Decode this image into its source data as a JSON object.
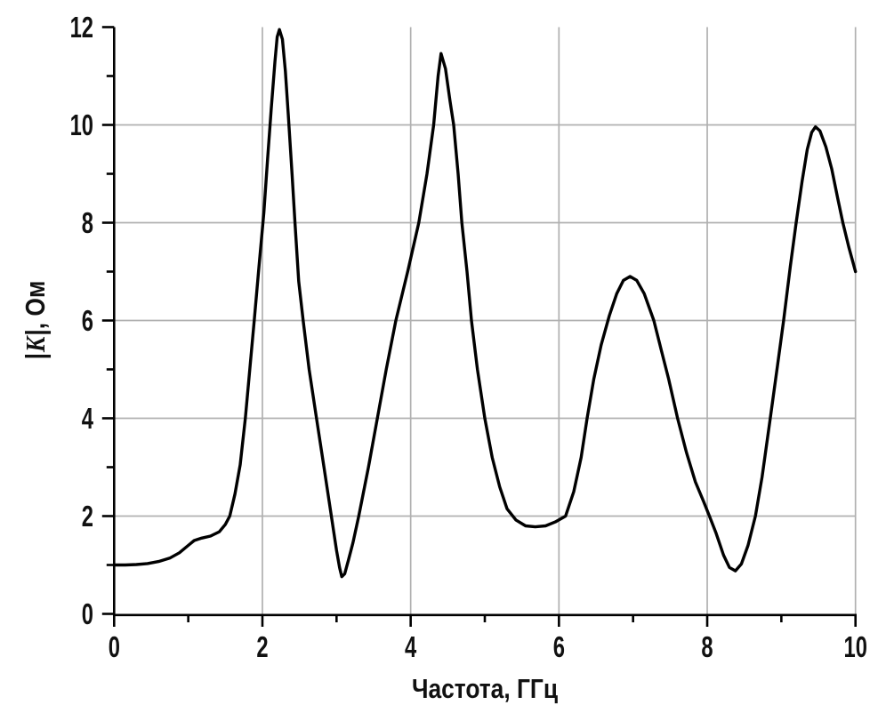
{
  "page": {
    "background": "#ffffff"
  },
  "labels": {
    "x_title": "Частота, ГГц",
    "y_pre": "|",
    "y_var": "K",
    "y_post": "|, Ом"
  },
  "chart_data": {
    "type": "line",
    "title": "",
    "xlabel": "Частота, ГГц",
    "ylabel": "|K|, Ом",
    "xlim": [
      0,
      10
    ],
    "ylim": [
      0,
      12
    ],
    "grid": {
      "vertical_at": [
        2,
        4,
        6,
        8,
        10
      ],
      "horizontal_at": [
        2,
        4,
        6,
        8,
        10
      ],
      "color": "#b0b0b0",
      "width": 1.7
    },
    "x_major_ticks": [
      0,
      2,
      4,
      6,
      8,
      10
    ],
    "x_minor_ticks": [
      1,
      3,
      5,
      7,
      9
    ],
    "y_major_ticks": [
      0,
      2,
      4,
      6,
      8,
      10,
      12
    ],
    "y_minor_ticks": [
      1,
      3,
      5,
      7,
      9,
      11
    ],
    "axis_color": "#000000",
    "series": [
      {
        "name": "|K|",
        "color": "#000000",
        "width": 3.4,
        "points": [
          [
            0.0,
            1.0
          ],
          [
            0.15,
            1.0
          ],
          [
            0.3,
            1.01
          ],
          [
            0.45,
            1.03
          ],
          [
            0.6,
            1.07
          ],
          [
            0.75,
            1.14
          ],
          [
            0.88,
            1.25
          ],
          [
            1.0,
            1.4
          ],
          [
            1.08,
            1.5
          ],
          [
            1.18,
            1.55
          ],
          [
            1.3,
            1.59
          ],
          [
            1.42,
            1.68
          ],
          [
            1.5,
            1.83
          ],
          [
            1.56,
            2.0
          ],
          [
            1.63,
            2.45
          ],
          [
            1.7,
            3.05
          ],
          [
            1.77,
            4.0
          ],
          [
            1.83,
            5.0
          ],
          [
            1.89,
            6.0
          ],
          [
            1.96,
            7.2
          ],
          [
            2.02,
            8.2
          ],
          [
            2.07,
            9.3
          ],
          [
            2.12,
            10.35
          ],
          [
            2.17,
            11.3
          ],
          [
            2.2,
            11.8
          ],
          [
            2.23,
            11.95
          ],
          [
            2.27,
            11.75
          ],
          [
            2.31,
            11.1
          ],
          [
            2.35,
            10.2
          ],
          [
            2.4,
            9.0
          ],
          [
            2.44,
            8.0
          ],
          [
            2.49,
            6.8
          ],
          [
            2.55,
            6.0
          ],
          [
            2.63,
            5.0
          ],
          [
            2.73,
            4.0
          ],
          [
            2.83,
            3.0
          ],
          [
            2.93,
            2.0
          ],
          [
            3.0,
            1.3
          ],
          [
            3.04,
            0.95
          ],
          [
            3.07,
            0.76
          ],
          [
            3.11,
            0.82
          ],
          [
            3.16,
            1.1
          ],
          [
            3.22,
            1.45
          ],
          [
            3.3,
            2.0
          ],
          [
            3.43,
            3.0
          ],
          [
            3.55,
            4.0
          ],
          [
            3.67,
            5.0
          ],
          [
            3.8,
            6.0
          ],
          [
            3.96,
            7.0
          ],
          [
            4.11,
            8.0
          ],
          [
            4.22,
            9.0
          ],
          [
            4.31,
            10.0
          ],
          [
            4.37,
            11.0
          ],
          [
            4.41,
            11.46
          ],
          [
            4.47,
            11.15
          ],
          [
            4.53,
            10.5
          ],
          [
            4.58,
            10.0
          ],
          [
            4.64,
            9.0
          ],
          [
            4.69,
            8.0
          ],
          [
            4.76,
            7.0
          ],
          [
            4.82,
            6.0
          ],
          [
            4.9,
            5.0
          ],
          [
            5.0,
            4.0
          ],
          [
            5.1,
            3.2
          ],
          [
            5.2,
            2.6
          ],
          [
            5.3,
            2.15
          ],
          [
            5.42,
            1.92
          ],
          [
            5.55,
            1.8
          ],
          [
            5.68,
            1.78
          ],
          [
            5.82,
            1.8
          ],
          [
            5.95,
            1.88
          ],
          [
            6.09,
            2.0
          ],
          [
            6.2,
            2.5
          ],
          [
            6.3,
            3.2
          ],
          [
            6.38,
            4.0
          ],
          [
            6.47,
            4.8
          ],
          [
            6.57,
            5.5
          ],
          [
            6.68,
            6.1
          ],
          [
            6.78,
            6.55
          ],
          [
            6.87,
            6.82
          ],
          [
            6.96,
            6.9
          ],
          [
            7.05,
            6.82
          ],
          [
            7.15,
            6.55
          ],
          [
            7.28,
            6.0
          ],
          [
            7.38,
            5.4
          ],
          [
            7.48,
            4.8
          ],
          [
            7.6,
            4.0
          ],
          [
            7.72,
            3.3
          ],
          [
            7.84,
            2.7
          ],
          [
            7.95,
            2.3
          ],
          [
            8.03,
            2.0
          ],
          [
            8.12,
            1.65
          ],
          [
            8.22,
            1.2
          ],
          [
            8.3,
            0.95
          ],
          [
            8.38,
            0.88
          ],
          [
            8.46,
            1.02
          ],
          [
            8.55,
            1.4
          ],
          [
            8.65,
            2.0
          ],
          [
            8.74,
            2.8
          ],
          [
            8.85,
            4.0
          ],
          [
            8.95,
            5.1
          ],
          [
            9.03,
            6.0
          ],
          [
            9.12,
            7.1
          ],
          [
            9.2,
            8.0
          ],
          [
            9.28,
            8.85
          ],
          [
            9.35,
            9.5
          ],
          [
            9.41,
            9.85
          ],
          [
            9.46,
            9.96
          ],
          [
            9.52,
            9.88
          ],
          [
            9.6,
            9.55
          ],
          [
            9.68,
            9.1
          ],
          [
            9.76,
            8.5
          ],
          [
            9.83,
            8.0
          ],
          [
            9.91,
            7.5
          ],
          [
            10.0,
            7.0
          ]
        ]
      }
    ]
  }
}
